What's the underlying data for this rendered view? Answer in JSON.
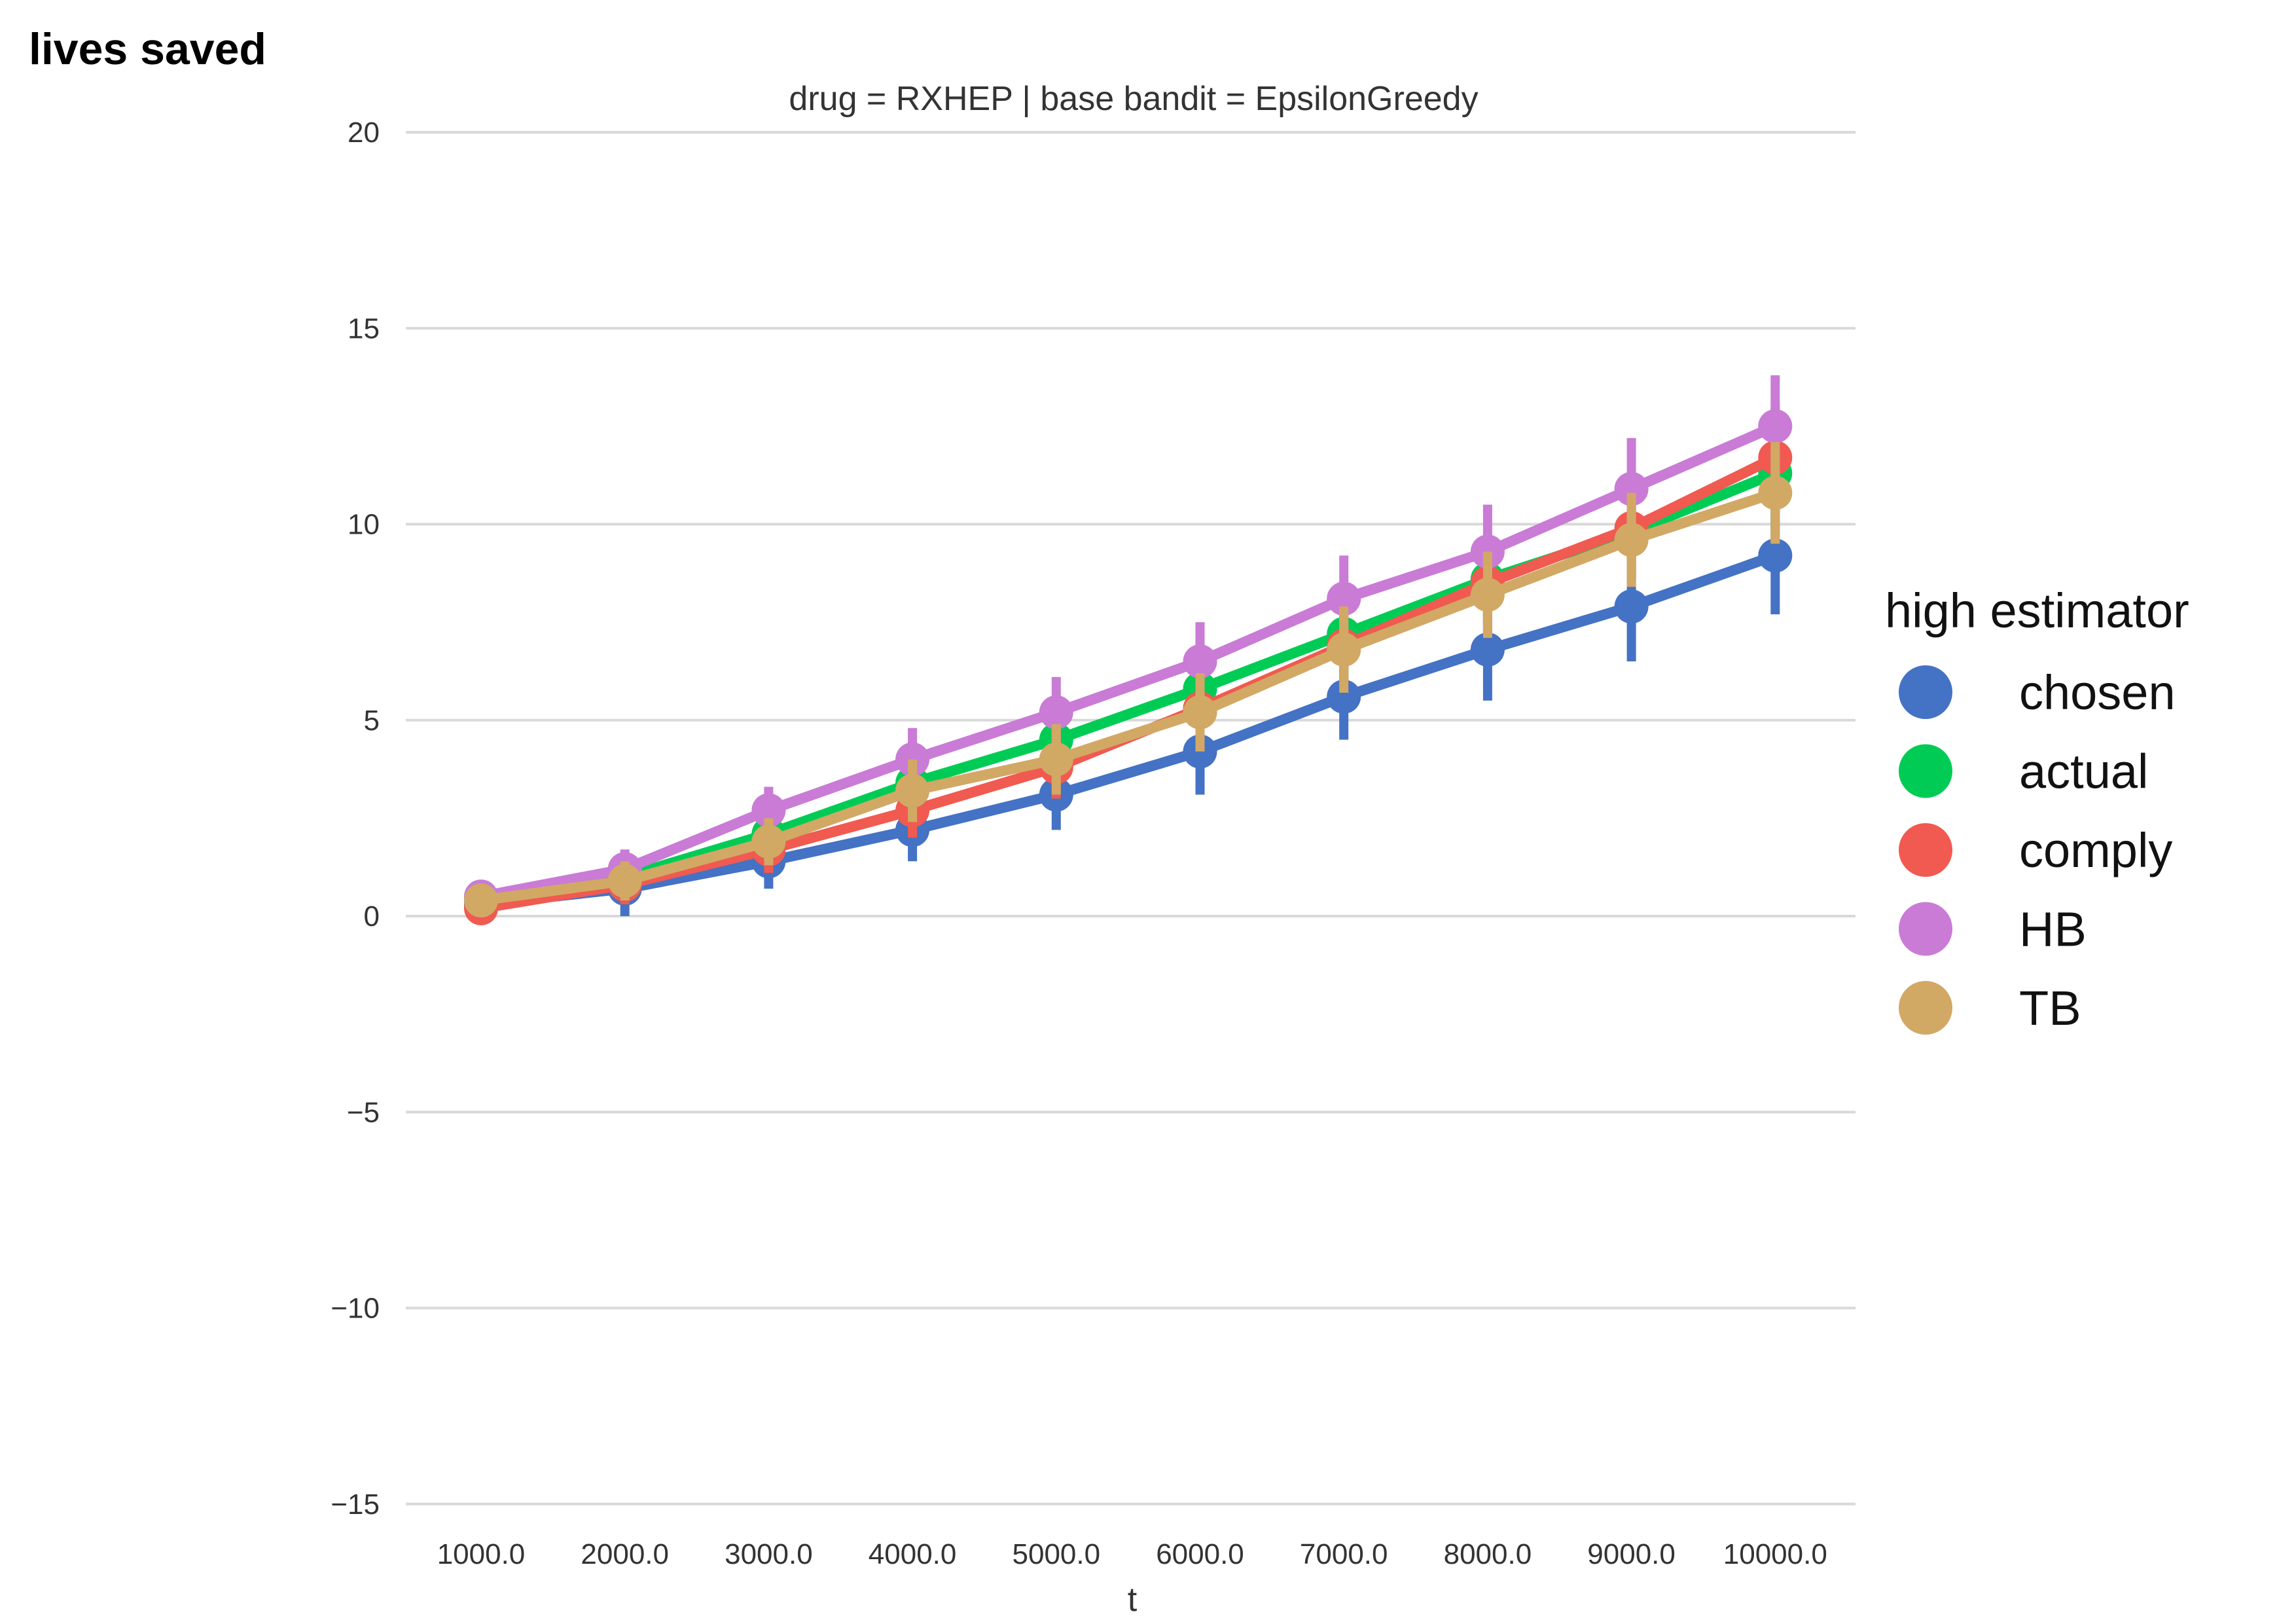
{
  "corner_label": "lives saved",
  "chart_data": {
    "type": "line",
    "title": "drug = RXHEP | base bandit = EpsilonGreedy",
    "xlabel": "t",
    "ylabel": "",
    "categories": [
      "1000.0",
      "2000.0",
      "3000.0",
      "4000.0",
      "5000.0",
      "6000.0",
      "7000.0",
      "8000.0",
      "9000.0",
      "10000.0"
    ],
    "ylim": [
      -15.5,
      20
    ],
    "yticks": [
      20,
      15,
      10,
      5,
      0,
      -5,
      -10,
      -15
    ],
    "ytick_labels": [
      "20",
      "15",
      "10",
      "5",
      "0",
      "−5",
      "−10",
      "−15"
    ],
    "grid": "horizontal",
    "legend": {
      "title": "high estimator",
      "placement": "right"
    },
    "series": [
      {
        "name": "chosen",
        "color": "#4472c4",
        "values": [
          0.3,
          0.7,
          1.4,
          2.2,
          3.1,
          4.2,
          5.6,
          6.8,
          7.9,
          9.2
        ],
        "err_low": [
          0.0,
          0.0,
          0.7,
          1.4,
          2.2,
          3.1,
          4.5,
          5.5,
          6.5,
          7.7
        ],
        "err_high": [
          0.6,
          1.3,
          2.0,
          3.0,
          3.9,
          5.2,
          6.6,
          7.9,
          9.2,
          10.6
        ]
      },
      {
        "name": "actual",
        "color": "#00cc55",
        "values": [
          0.4,
          1.0,
          2.1,
          3.4,
          4.5,
          5.8,
          7.2,
          8.6,
          9.8,
          11.3
        ],
        "err_low": [
          0.1,
          0.4,
          1.5,
          2.6,
          3.6,
          4.8,
          6.1,
          7.5,
          8.6,
          9.9
        ],
        "err_high": [
          0.7,
          1.6,
          2.7,
          4.2,
          5.4,
          6.8,
          8.3,
          9.7,
          11.0,
          12.7
        ]
      },
      {
        "name": "comply",
        "color": "#f05a50",
        "values": [
          0.2,
          0.8,
          1.7,
          2.7,
          3.8,
          5.3,
          6.9,
          8.5,
          9.9,
          11.7
        ],
        "err_low": [
          0.0,
          0.3,
          1.1,
          2.0,
          3.0,
          4.4,
          5.9,
          7.4,
          8.8,
          10.4
        ],
        "err_high": [
          0.5,
          1.3,
          2.3,
          3.4,
          4.6,
          6.2,
          7.9,
          9.6,
          11.0,
          13.0
        ]
      },
      {
        "name": "HB",
        "color": "#c97bd6",
        "values": [
          0.5,
          1.2,
          2.7,
          4.0,
          5.2,
          6.5,
          8.1,
          9.3,
          10.9,
          12.5
        ],
        "err_low": [
          0.2,
          0.7,
          2.1,
          3.2,
          4.3,
          5.5,
          7.0,
          8.1,
          9.6,
          11.2
        ],
        "err_high": [
          0.8,
          1.7,
          3.3,
          4.8,
          6.1,
          7.5,
          9.2,
          10.5,
          12.2,
          13.8
        ]
      },
      {
        "name": "TB",
        "color": "#d2a865",
        "values": [
          0.4,
          0.9,
          1.9,
          3.2,
          4.0,
          5.2,
          6.8,
          8.2,
          9.6,
          10.8
        ],
        "err_low": [
          0.1,
          0.4,
          1.3,
          2.4,
          3.1,
          4.2,
          5.7,
          7.1,
          8.4,
          9.5
        ],
        "err_high": [
          0.7,
          1.4,
          2.5,
          4.0,
          4.9,
          6.2,
          7.9,
          9.3,
          10.8,
          12.1
        ]
      }
    ]
  }
}
